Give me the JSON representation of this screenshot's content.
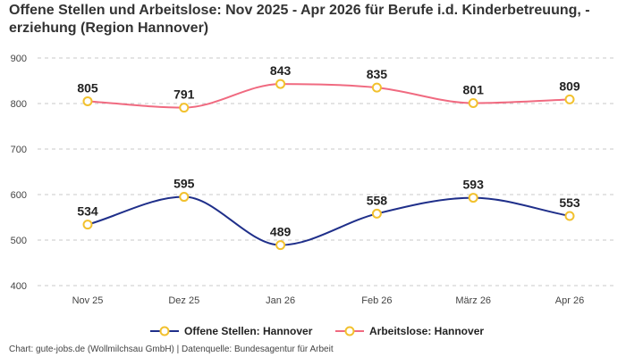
{
  "chart_data": {
    "type": "line",
    "title": "Offene Stellen und Arbeitslose: Nov 2025 - Apr 2026 für Berufe i.d. Kinderbetreuung, -erziehung (Region Hannover)",
    "categories": [
      "Nov 25",
      "Dez 25",
      "Jan 26",
      "Feb 26",
      "März 26",
      "Apr 26"
    ],
    "series": [
      {
        "name": "Offene Stellen: Hannover",
        "values": [
          534,
          595,
          489,
          558,
          593,
          553
        ],
        "color": "#1f2f8a"
      },
      {
        "name": "Arbeitslose: Hannover",
        "values": [
          805,
          791,
          843,
          835,
          801,
          809
        ],
        "color": "#f06a80"
      }
    ],
    "ylim": [
      400,
      900
    ],
    "yticks": [
      400,
      500,
      600,
      700,
      800,
      900
    ],
    "grid": true,
    "legend_position": "bottom",
    "marker_color": "#f2c12e"
  },
  "footer": {
    "source": "Chart: gute-jobs.de (Wollmilchsau GmbH) | Datenquelle: Bundesagentur für Arbeit"
  }
}
